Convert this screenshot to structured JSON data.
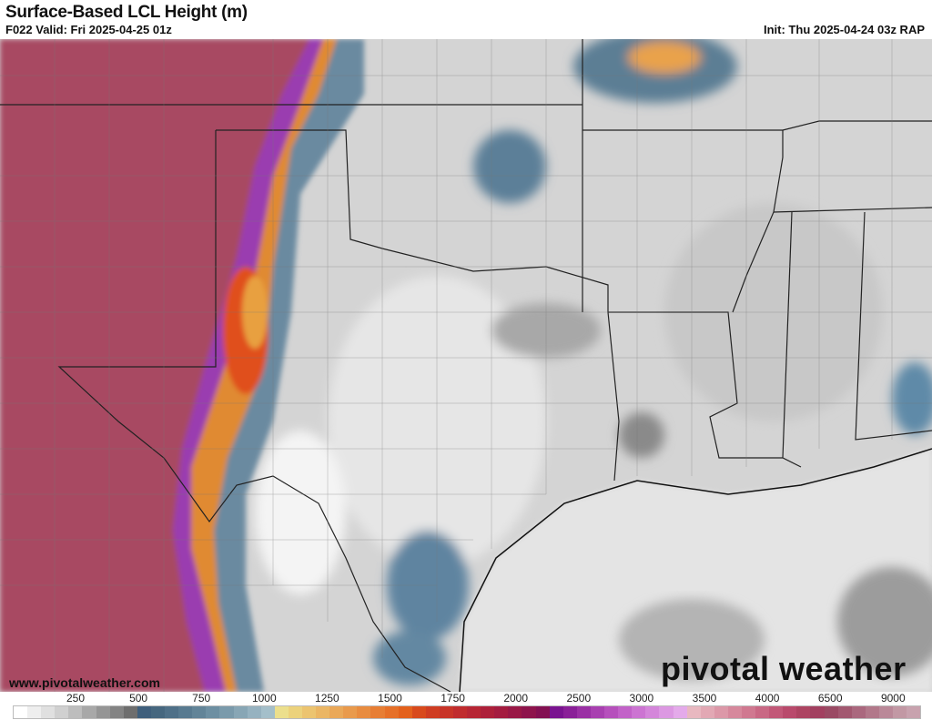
{
  "header": {
    "title": "Surface-Based LCL Height (m)",
    "valid": "F022 Valid: Fri 2025-04-25 01z",
    "init": "Init: Thu 2025-04-24 03z RAP"
  },
  "footer": {
    "url": "www.pivotalweather.com",
    "logo": "pivotal weather"
  },
  "colorbar": {
    "labels": [
      "250",
      "500",
      "750",
      "1000",
      "1250",
      "1500",
      "1750",
      "2000",
      "2500",
      "3000",
      "3500",
      "4000",
      "6500",
      "9000"
    ],
    "colors": [
      "#ffffff",
      "#eeeeee",
      "#e0e0e0",
      "#d0d0d0",
      "#bdbdbd",
      "#a8a8a8",
      "#959595",
      "#838383",
      "#6e6e6e",
      "#3f5f7c",
      "#46677f",
      "#4f7088",
      "#587a90",
      "#628498",
      "#6d8fa2",
      "#7a9aab",
      "#88a6b5",
      "#96b2c0",
      "#a4bfca",
      "#ecdf8c",
      "#ecd27c",
      "#ecc470",
      "#ebb664",
      "#eaa858",
      "#e99a4c",
      "#e88c40",
      "#e77e34",
      "#e67028",
      "#e3611c",
      "#d84a1c",
      "#cf3d22",
      "#c83428",
      "#c02c2e",
      "#b72634",
      "#ad203a",
      "#a41c40",
      "#991846",
      "#8e144c",
      "#831052",
      "#7a1490",
      "#8a2098",
      "#9a30a4",
      "#a840b0",
      "#b650bc",
      "#c262c8",
      "#cc74d2",
      "#d486da",
      "#dc98e2",
      "#e4aaea",
      "#e8b8c0",
      "#e2a8b4",
      "#dc98a8",
      "#d6889c",
      "#d07890",
      "#c96884",
      "#c25878",
      "#b94a6c",
      "#ad4462",
      "#a24060",
      "#9a4a64",
      "#a25870",
      "#aa687e",
      "#b2788a",
      "#ba8898",
      "#c298a4",
      "#c8a2ae"
    ]
  }
}
